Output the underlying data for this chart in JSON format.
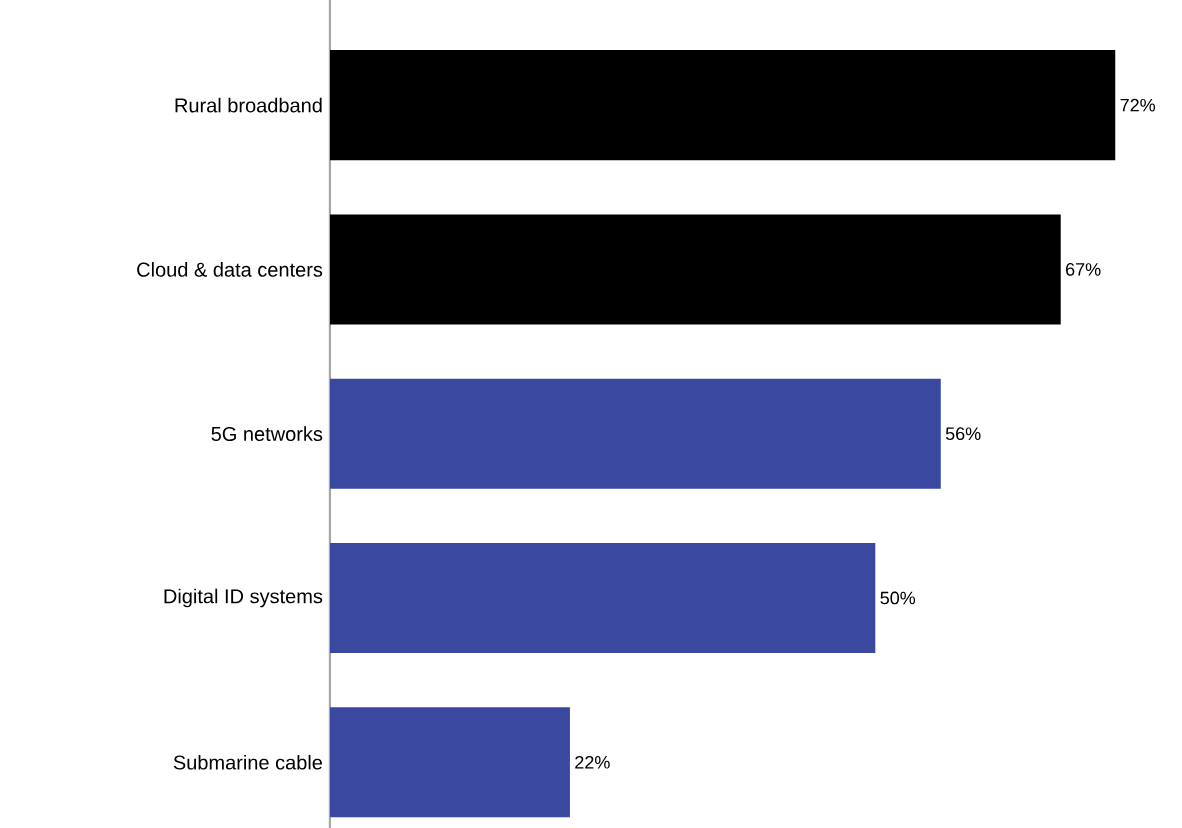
{
  "chart_data": {
    "type": "bar",
    "orientation": "horizontal",
    "categories": [
      "Rural broadband",
      "Cloud & data centers",
      "5G networks",
      "Digital ID systems",
      "Submarine cable"
    ],
    "values": [
      72,
      67,
      56,
      50,
      22
    ],
    "colors": [
      "#000000",
      "#000000",
      "#3a48a0",
      "#3a48a0",
      "#3a48a0"
    ],
    "value_labels": [
      "72%",
      "67%",
      "56%",
      "50%",
      "22%"
    ]
  }
}
